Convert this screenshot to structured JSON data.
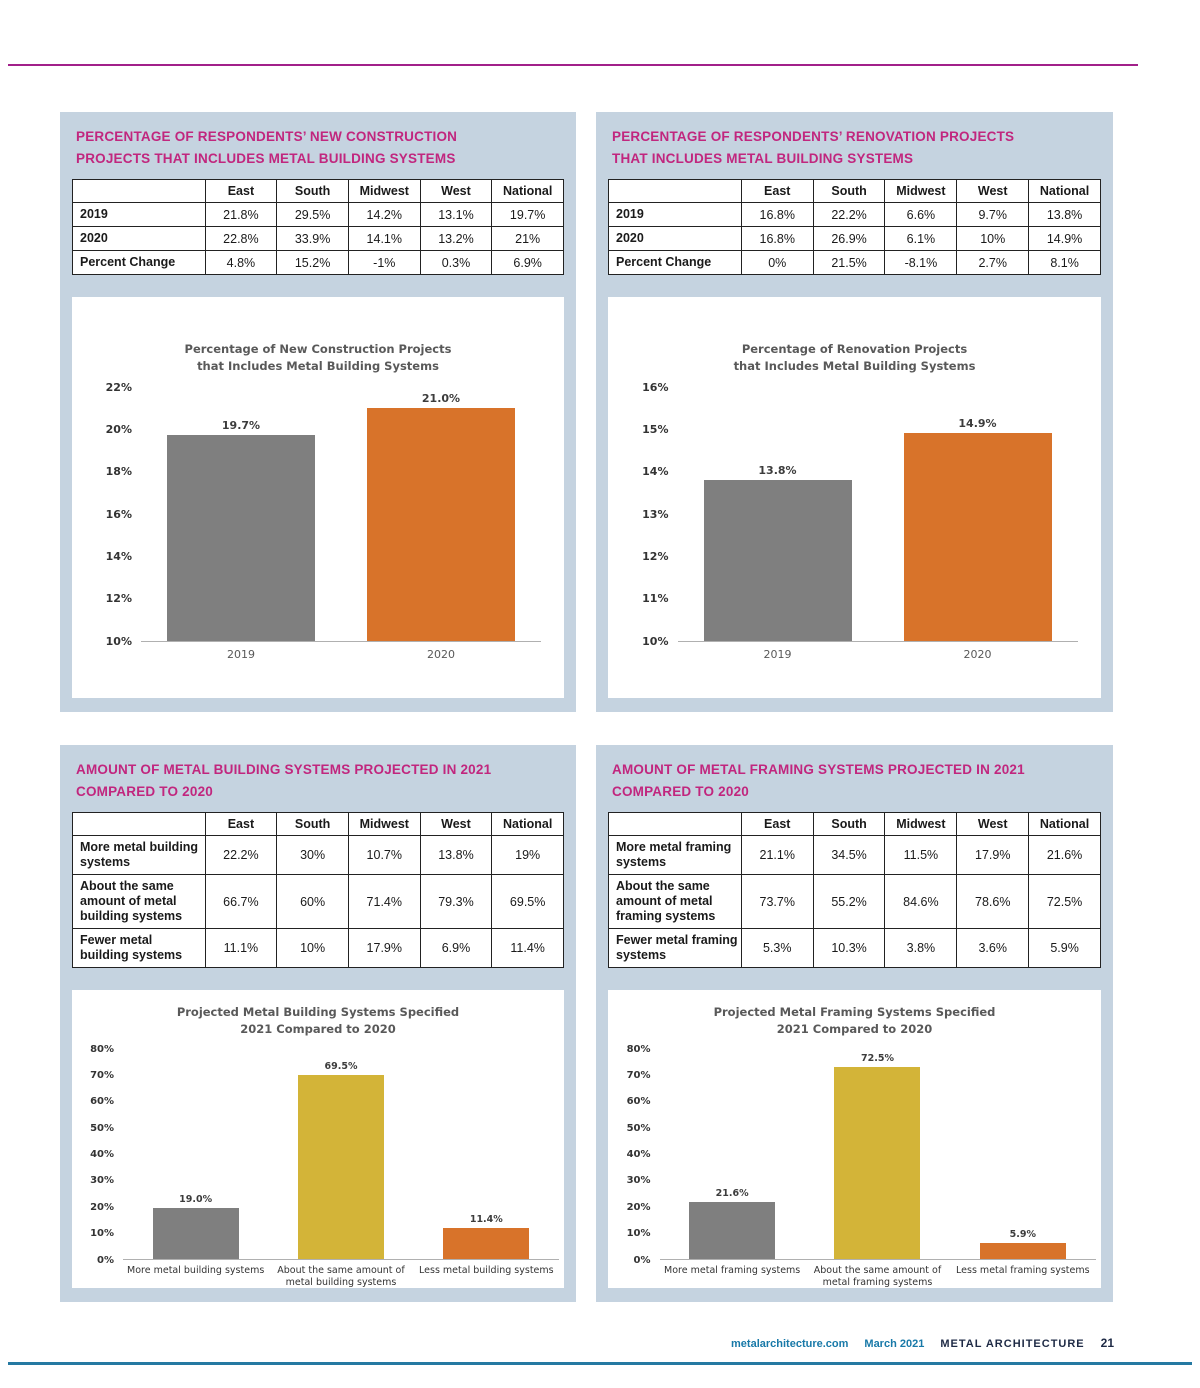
{
  "page": {
    "footer": {
      "site": "metalarchitecture.com",
      "date": "March 2021",
      "publication": "METAL ARCHITECTURE",
      "page_number": "21"
    },
    "colors": {
      "accent_magenta": "#c1267e",
      "panel_bg": "#c5d3e0",
      "bar_gray": "#7f7f7f",
      "bar_orange": "#d8732a",
      "bar_yellow": "#d3b438",
      "rule_top": "#a2208a",
      "rule_bottom": "#2579a2"
    }
  },
  "panels": [
    {
      "title_lines": [
        "PERCENTAGE OF RESPONDENTS’ NEW CONSTRUCTION",
        "PROJECTS THAT INCLUDES METAL BUILDING SYSTEMS"
      ],
      "table": {
        "columns": [
          "East",
          "South",
          "Midwest",
          "West",
          "National"
        ],
        "rows": [
          {
            "label": "2019",
            "values": [
              "21.8%",
              "29.5%",
              "14.2%",
              "13.1%",
              "19.7%"
            ]
          },
          {
            "label": "2020",
            "values": [
              "22.8%",
              "33.9%",
              "14.1%",
              "13.2%",
              "21%"
            ]
          },
          {
            "label": "Percent Change",
            "values": [
              "4.8%",
              "15.2%",
              "-1%",
              "0.3%",
              "6.9%"
            ]
          }
        ]
      }
    },
    {
      "title_lines": [
        "PERCENTAGE OF RESPONDENTS’ RENOVATION PROJECTS",
        "THAT INCLUDES METAL BUILDING SYSTEMS"
      ],
      "table": {
        "columns": [
          "East",
          "South",
          "Midwest",
          "West",
          "National"
        ],
        "rows": [
          {
            "label": "2019",
            "values": [
              "16.8%",
              "22.2%",
              "6.6%",
              "9.7%",
              "13.8%"
            ]
          },
          {
            "label": "2020",
            "values": [
              "16.8%",
              "26.9%",
              "6.1%",
              "10%",
              "14.9%"
            ]
          },
          {
            "label": "Percent Change",
            "values": [
              "0%",
              "21.5%",
              "-8.1%",
              "2.7%",
              "8.1%"
            ]
          }
        ]
      }
    },
    {
      "title_lines": [
        "AMOUNT OF METAL BUILDING SYSTEMS PROJECTED IN 2021",
        "COMPARED TO 2020"
      ],
      "table": {
        "columns": [
          "East",
          "South",
          "Midwest",
          "West",
          "National"
        ],
        "rows": [
          {
            "label": "More metal building systems",
            "values": [
              "22.2%",
              "30%",
              "10.7%",
              "13.8%",
              "19%"
            ]
          },
          {
            "label": "About the same amount of metal building systems",
            "values": [
              "66.7%",
              "60%",
              "71.4%",
              "79.3%",
              "69.5%"
            ]
          },
          {
            "label": "Fewer metal building systems",
            "values": [
              "11.1%",
              "10%",
              "17.9%",
              "6.9%",
              "11.4%"
            ]
          }
        ]
      }
    },
    {
      "title_lines": [
        "AMOUNT OF METAL FRAMING SYSTEMS PROJECTED IN 2021",
        "COMPARED TO 2020"
      ],
      "table": {
        "columns": [
          "East",
          "South",
          "Midwest",
          "West",
          "National"
        ],
        "rows": [
          {
            "label": "More metal framing systems",
            "values": [
              "21.1%",
              "34.5%",
              "11.5%",
              "17.9%",
              "21.6%"
            ]
          },
          {
            "label": "About the same amount of metal framing systems",
            "values": [
              "73.7%",
              "55.2%",
              "84.6%",
              "78.6%",
              "72.5%"
            ]
          },
          {
            "label": "Fewer metal framing systems",
            "values": [
              "5.3%",
              "10.3%",
              "3.8%",
              "3.6%",
              "5.9%"
            ]
          }
        ]
      }
    }
  ],
  "chart_data": [
    {
      "type": "bar",
      "title": "Percentage of New Construction Projects\nthat Includes Metal Building Systems",
      "categories": [
        "2019",
        "2020"
      ],
      "values": [
        19.7,
        21.0
      ],
      "value_labels": [
        "19.7%",
        "21.0%"
      ],
      "bar_colors": [
        "bar_gray",
        "bar_orange"
      ],
      "ylim": [
        10,
        22
      ],
      "yticks": [
        10,
        12,
        14,
        16,
        18,
        20,
        22
      ],
      "xlabel": "",
      "ylabel": "",
      "grid": false,
      "legend": "none"
    },
    {
      "type": "bar",
      "title": "Percentage of Renovation Projects\nthat Includes Metal Building Systems",
      "categories": [
        "2019",
        "2020"
      ],
      "values": [
        13.8,
        14.9
      ],
      "value_labels": [
        "13.8%",
        "14.9%"
      ],
      "bar_colors": [
        "bar_gray",
        "bar_orange"
      ],
      "ylim": [
        10,
        16
      ],
      "yticks": [
        10,
        11,
        12,
        13,
        14,
        15,
        16
      ],
      "xlabel": "",
      "ylabel": "",
      "grid": false,
      "legend": "none"
    },
    {
      "type": "bar",
      "title": "Projected Metal Building Systems Specified\n2021 Compared to 2020",
      "categories": [
        "More metal building systems",
        "About the same amount of\nmetal building systems",
        "Less metal building systems"
      ],
      "values": [
        19.0,
        69.5,
        11.4
      ],
      "value_labels": [
        "19.0%",
        "69.5%",
        "11.4%"
      ],
      "bar_colors": [
        "bar_gray",
        "bar_yellow",
        "bar_orange"
      ],
      "ylim": [
        0,
        80
      ],
      "yticks": [
        0,
        10,
        20,
        30,
        40,
        50,
        60,
        70,
        80
      ],
      "xlabel": "",
      "ylabel": "",
      "grid": false,
      "legend": "none"
    },
    {
      "type": "bar",
      "title": "Projected Metal Framing Systems Specified\n2021 Compared to 2020",
      "categories": [
        "More metal framing systems",
        "About the same amount of\nmetal framing systems",
        "Less metal framing systems"
      ],
      "values": [
        21.6,
        72.5,
        5.9
      ],
      "value_labels": [
        "21.6%",
        "72.5%",
        "5.9%"
      ],
      "bar_colors": [
        "bar_gray",
        "bar_yellow",
        "bar_orange"
      ],
      "ylim": [
        0,
        80
      ],
      "yticks": [
        0,
        10,
        20,
        30,
        40,
        50,
        60,
        70,
        80
      ],
      "xlabel": "",
      "ylabel": "",
      "grid": false,
      "legend": "none"
    }
  ]
}
